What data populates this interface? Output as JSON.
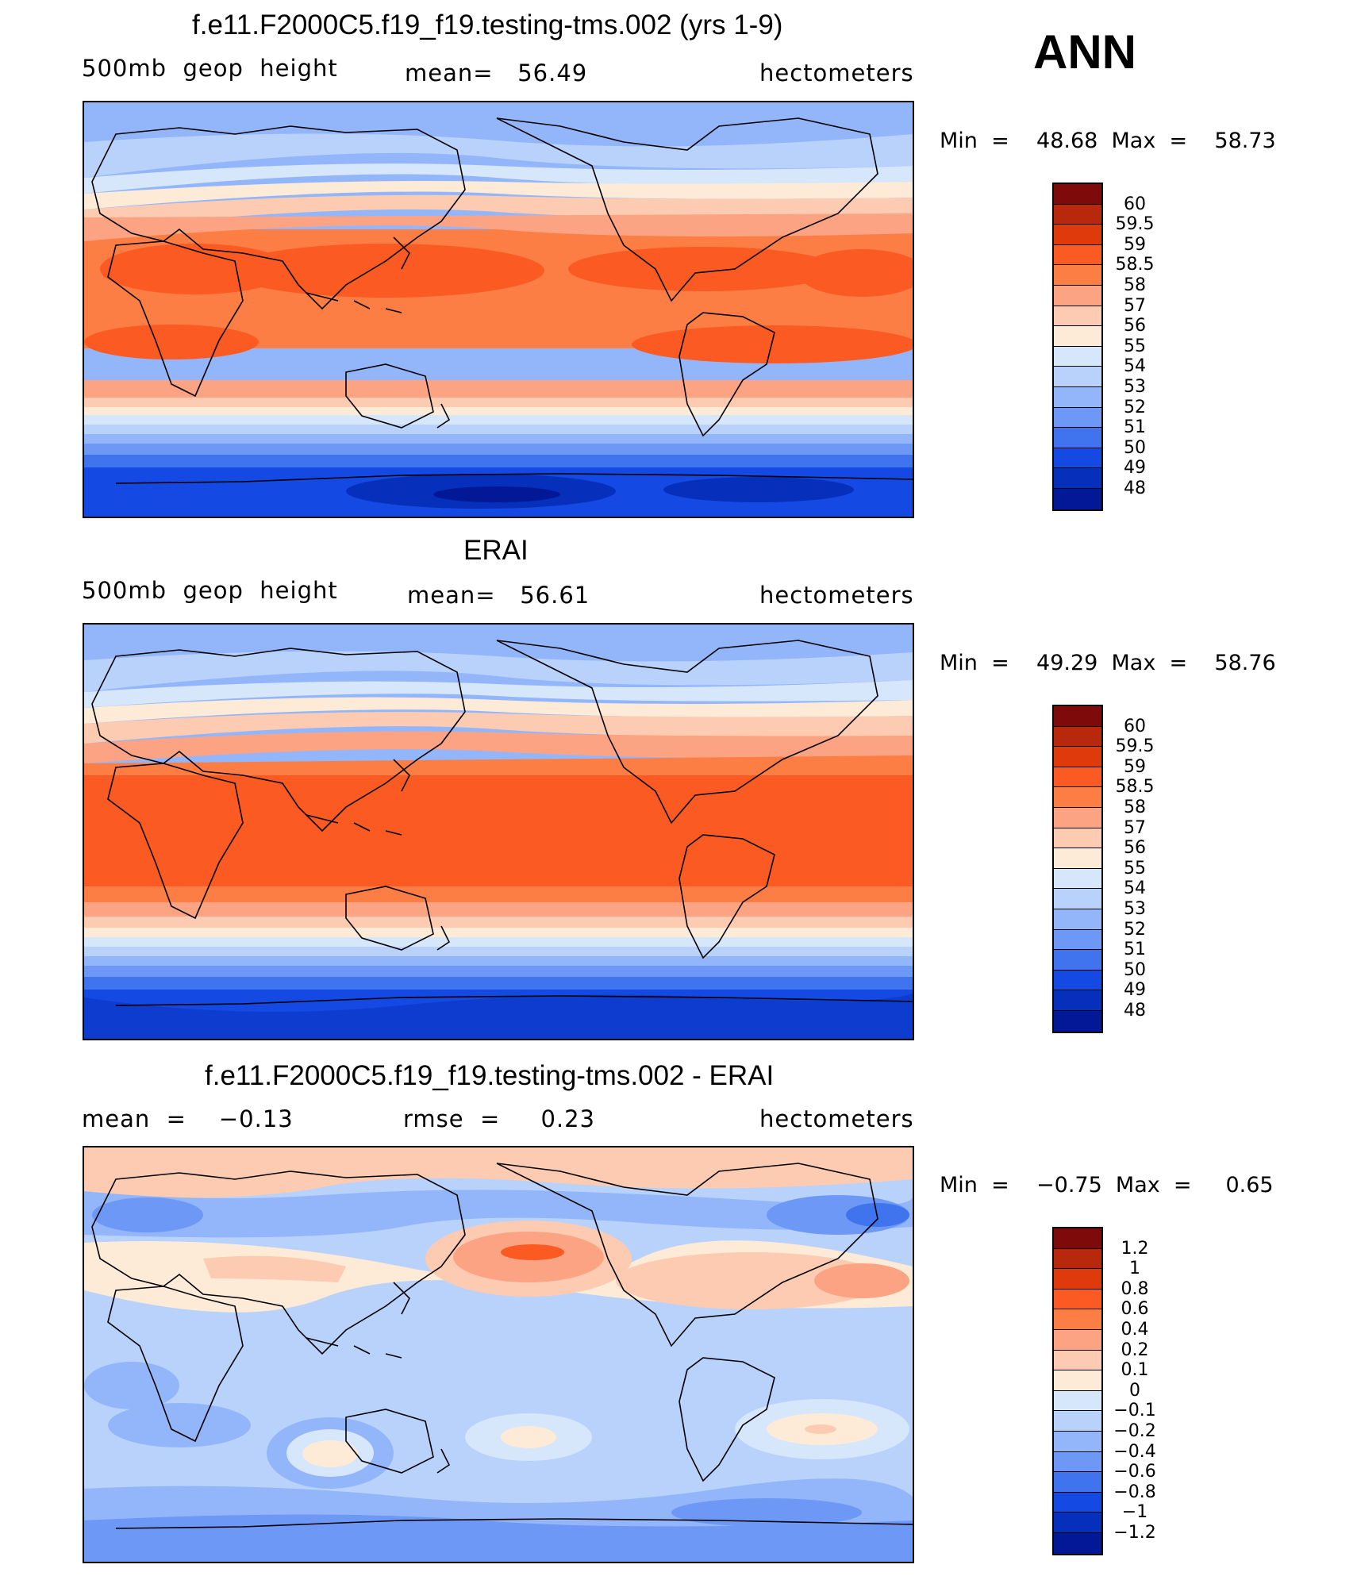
{
  "season": "ANN",
  "panels": [
    {
      "id": "model",
      "title": "f.e11.F2000C5.f19_f19.testing-tms.002 (yrs 1-9)",
      "left_label": "500mb  geop  height",
      "center_label": "mean=   56.49",
      "right_label": "hectometers",
      "min_max": "Min  =    48.68  Max  =    58.73",
      "colorbar_labels": [
        "60",
        "59.5",
        "59",
        "58.5",
        "58",
        "57",
        "56",
        "55",
        "54",
        "53",
        "52",
        "51",
        "50",
        "49",
        "48"
      ]
    },
    {
      "id": "obs",
      "title": "ERAI",
      "left_label": "500mb  geop  height",
      "center_label": "mean=   56.61",
      "right_label": "hectometers",
      "min_max": "Min  =    49.29  Max  =    58.76",
      "colorbar_labels": [
        "60",
        "59.5",
        "59",
        "58.5",
        "58",
        "57",
        "56",
        "55",
        "54",
        "53",
        "52",
        "51",
        "50",
        "49",
        "48"
      ]
    },
    {
      "id": "diff",
      "title": "f.e11.F2000C5.f19_f19.testing-tms.002 - ERAI",
      "left_label": "mean  =    −0.13",
      "center_label": "rmse  =     0.23",
      "right_label": "hectometers",
      "min_max": "Min  =    −0.75  Max  =     0.65",
      "colorbar_labels": [
        "1.2",
        "1",
        "0.8",
        "0.6",
        "0.4",
        "0.2",
        "0.1",
        "0",
        "−0.1",
        "−0.2",
        "−0.4",
        "−0.6",
        "−0.8",
        "−1",
        "−1.2"
      ]
    }
  ],
  "colors": {
    "palette": [
      "#7f0a0a",
      "#b8280c",
      "#de3a0c",
      "#fb5a22",
      "#fd7e45",
      "#fca383",
      "#fdcbb1",
      "#fdebd8",
      "#d6e6fb",
      "#b8d2fb",
      "#93b6fb",
      "#6d98f6",
      "#3f74ee",
      "#1449e3",
      "#0630bb",
      "#031896",
      "#000f7a"
    ]
  }
}
